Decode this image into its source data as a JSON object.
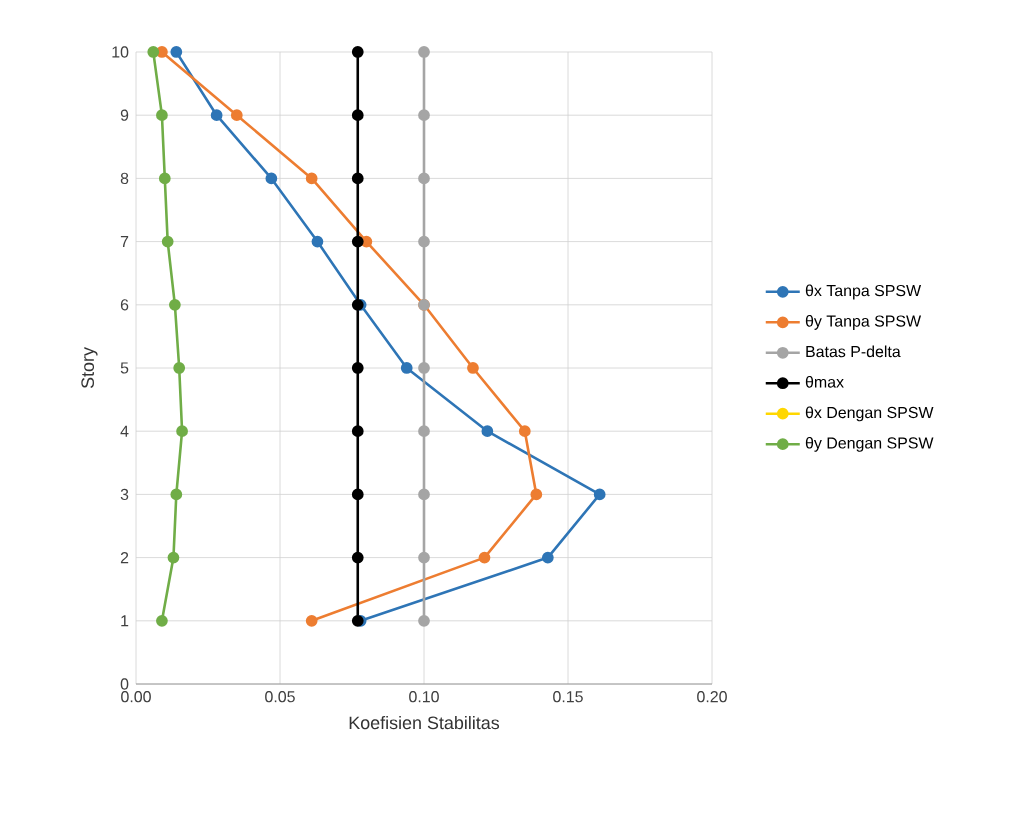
{
  "chart_data": {
    "type": "line",
    "xlabel": "Koefisien Stabilitas",
    "ylabel": "Story",
    "xlim": [
      0,
      0.2
    ],
    "xticks": [
      {
        "value": 0,
        "label": "0.00"
      },
      {
        "value": 0.05,
        "label": "0.05"
      },
      {
        "value": 0.1,
        "label": "0.10"
      },
      {
        "value": 0.15,
        "label": "0.15"
      },
      {
        "value": 0.2,
        "label": "0.20"
      }
    ],
    "ylim": [
      0,
      10
    ],
    "yticks": [
      0,
      1,
      2,
      3,
      4,
      5,
      6,
      7,
      8,
      9,
      10
    ],
    "grid": true,
    "legend": "right",
    "marker": "circle",
    "series": [
      {
        "name": "θx Tanpa SPSW",
        "color": "#2e75b6",
        "x": [
          0.078,
          0.143,
          0.161,
          0.122,
          0.094,
          0.078,
          0.063,
          0.047,
          0.028,
          0.014
        ],
        "values": [
          1,
          2,
          3,
          4,
          5,
          6,
          7,
          8,
          9,
          10
        ]
      },
      {
        "name": "θy Tanpa SPSW",
        "color": "#ed7d31",
        "x": [
          0.061,
          0.121,
          0.139,
          0.135,
          0.117,
          0.1,
          0.08,
          0.061,
          0.035,
          0.009
        ],
        "values": [
          1,
          2,
          3,
          4,
          5,
          6,
          7,
          8,
          9,
          10
        ]
      },
      {
        "name": "Batas P-delta",
        "color": "#a5a5a5",
        "x": [
          0.1,
          0.1,
          0.1,
          0.1,
          0.1,
          0.1,
          0.1,
          0.1,
          0.1,
          0.1
        ],
        "values": [
          1,
          2,
          3,
          4,
          5,
          6,
          7,
          8,
          9,
          10
        ]
      },
      {
        "name": "θmax",
        "color": "#000000",
        "x": [
          0.077,
          0.077,
          0.077,
          0.077,
          0.077,
          0.077,
          0.077,
          0.077,
          0.077,
          0.077
        ],
        "values": [
          1,
          2,
          3,
          4,
          5,
          6,
          7,
          8,
          9,
          10
        ]
      },
      {
        "name": "θx Dengan SPSW",
        "color": "#ffd700",
        "x": [
          null,
          null,
          null,
          null,
          null,
          null,
          null,
          null,
          null,
          null
        ],
        "values": [
          null,
          null,
          null,
          null,
          null,
          null,
          null,
          null,
          null,
          null
        ]
      },
      {
        "name": "θy Dengan SPSW",
        "color": "#70ad47",
        "x": [
          0.009,
          0.013,
          0.014,
          0.016,
          0.015,
          0.0135,
          0.011,
          0.01,
          0.009,
          0.006
        ],
        "values": [
          1,
          2,
          3,
          4,
          5,
          6,
          7,
          8,
          9,
          10
        ]
      }
    ]
  }
}
